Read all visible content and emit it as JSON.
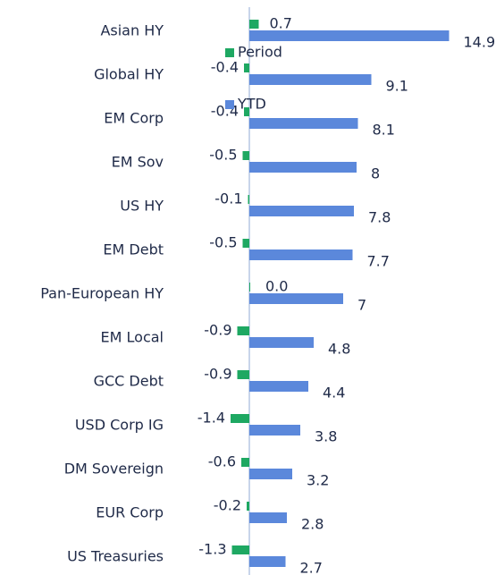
{
  "chart_data": {
    "type": "hbar",
    "categories": [
      "Asian HY",
      "Global HY",
      "EM Corp",
      "EM Sov",
      "US HY",
      "EM Debt",
      "Pan-European HY",
      "EM Local",
      "GCC Debt",
      "USD Corp IG",
      "DM Sovereign",
      "EUR Corp",
      "US Treasuries"
    ],
    "series": [
      {
        "name": "Period",
        "color": "#1ea862",
        "values": [
          0.7,
          -0.4,
          -0.4,
          -0.5,
          -0.1,
          -0.5,
          0.0,
          -0.9,
          -0.9,
          -1.4,
          -0.6,
          -0.2,
          -1.3
        ],
        "value_labels": [
          "0.7",
          "-0.4",
          "-0.4",
          "-0.5",
          "-0.1",
          "-0.5",
          "0.0",
          "-0.9",
          "-0.9",
          "-1.4",
          "-0.6",
          "-0.2",
          "-1.3"
        ]
      },
      {
        "name": "YTD",
        "color": "#5b88db",
        "values": [
          14.9,
          9.1,
          8.1,
          8.0,
          7.8,
          7.7,
          7.0,
          4.8,
          4.4,
          3.8,
          3.2,
          2.8,
          2.7
        ]
      }
    ]
  }
}
